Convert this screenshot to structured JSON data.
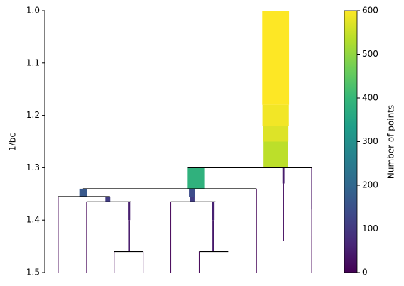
{
  "chart_data": {
    "type": "condensed-tree",
    "ylabel": "1/bc",
    "xlim": [
      0,
      400
    ],
    "ylim": [
      1.0,
      1.5
    ],
    "yticks": [
      {
        "value": 1.0,
        "label": "1.0"
      },
      1.1,
      1.2,
      1.3,
      1.4,
      1.5
    ],
    "colormap": [
      "#440154",
      "#482878",
      "#3e4989",
      "#31688e",
      "#26828e",
      "#1f9e89",
      "#35b779",
      "#6ece58",
      "#b5de2b",
      "#fde725"
    ],
    "clim": [
      0,
      600
    ],
    "cticks": [
      0,
      100,
      200,
      300,
      400,
      500,
      600
    ],
    "colorbar_label": "Number of points",
    "segments": [
      {
        "x": 326,
        "y0": 1.0,
        "y1": 1.18,
        "size": 600
      },
      {
        "x": 326,
        "y0": 1.18,
        "y1": 1.22,
        "size": 590
      },
      {
        "x": 326,
        "y0": 1.22,
        "y1": 1.25,
        "size": 570
      },
      {
        "x": 326,
        "y0": 1.25,
        "y1": 1.3,
        "size": 540
      },
      {
        "x": 214,
        "y0": 1.3,
        "y1": 1.34,
        "size": 385
      },
      {
        "x": 337,
        "y0": 1.3,
        "y1": 1.33,
        "size": 45
      },
      {
        "x": 337,
        "y0": 1.33,
        "y1": 1.44,
        "size": 25
      },
      {
        "x": 377,
        "y0": 1.3,
        "y1": 1.38,
        "size": 20
      },
      {
        "x": 377,
        "y0": 1.38,
        "y1": 1.43,
        "size": 12
      },
      {
        "x": 377,
        "y0": 1.43,
        "y1": 1.5,
        "size": 4
      },
      {
        "x": 54,
        "y0": 1.34,
        "y1": 1.355,
        "size": 165
      },
      {
        "x": 208,
        "y0": 1.34,
        "y1": 1.355,
        "size": 140
      },
      {
        "x": 208,
        "y0": 1.355,
        "y1": 1.365,
        "size": 110
      },
      {
        "x": 299,
        "y0": 1.34,
        "y1": 1.5,
        "size": 4
      },
      {
        "x": 19,
        "y0": 1.355,
        "y1": 1.5,
        "size": 4
      },
      {
        "x": 89,
        "y0": 1.355,
        "y1": 1.365,
        "size": 110
      },
      {
        "x": 59,
        "y0": 1.365,
        "y1": 1.5,
        "size": 5
      },
      {
        "x": 119,
        "y0": 1.365,
        "y1": 1.4,
        "size": 50
      },
      {
        "x": 119,
        "y0": 1.4,
        "y1": 1.46,
        "size": 40
      },
      {
        "x": 98,
        "y0": 1.46,
        "y1": 1.5,
        "size": 4
      },
      {
        "x": 139,
        "y0": 1.46,
        "y1": 1.5,
        "size": 4
      },
      {
        "x": 178,
        "y0": 1.365,
        "y1": 1.5,
        "size": 5
      },
      {
        "x": 238,
        "y0": 1.365,
        "y1": 1.4,
        "size": 55
      },
      {
        "x": 238,
        "y0": 1.4,
        "y1": 1.46,
        "size": 40
      },
      {
        "x": 218,
        "y0": 1.46,
        "y1": 1.5,
        "size": 4
      }
    ],
    "splits": [
      {
        "y": 1.3,
        "x1": 202,
        "x2": 377
      },
      {
        "y": 1.34,
        "x1": 54,
        "x2": 299
      },
      {
        "y": 1.355,
        "x1": 19,
        "x2": 92
      },
      {
        "y": 1.365,
        "x1": 59,
        "x2": 122
      },
      {
        "y": 1.365,
        "x1": 178,
        "x2": 241
      },
      {
        "y": 1.46,
        "x1": 98,
        "x2": 139
      },
      {
        "y": 1.46,
        "x1": 218,
        "x2": 259
      }
    ]
  }
}
